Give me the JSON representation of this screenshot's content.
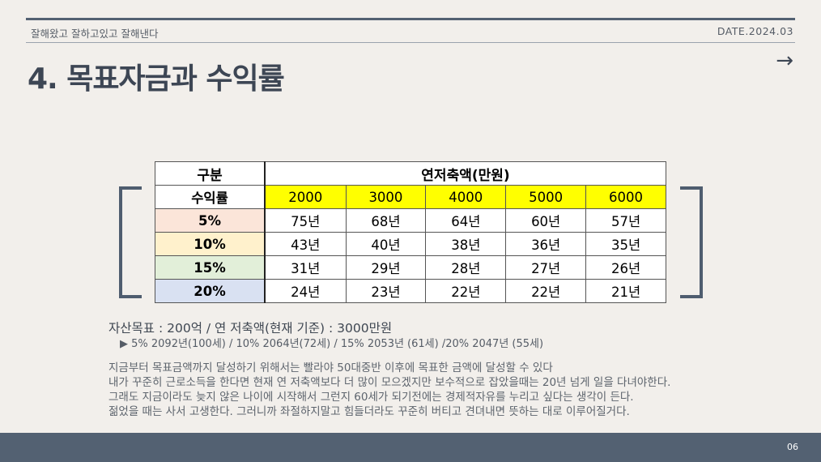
{
  "header": {
    "slogan": "잘해왔고 잘하고있고 잘해낸다",
    "date": "DATE.2024.03",
    "title": "4. 목표자금과 수익률",
    "arrow": "→"
  },
  "table": {
    "corner_label": "구분",
    "group_header": "연저축액(만원)",
    "row_header_label": "수익률",
    "amounts": [
      "2000",
      "3000",
      "4000",
      "5000",
      "6000"
    ],
    "rows": [
      {
        "rate": "5%",
        "cells": [
          "75년",
          "68년",
          "64년",
          "60년",
          "57년"
        ]
      },
      {
        "rate": "10%",
        "cells": [
          "43년",
          "40년",
          "38년",
          "36년",
          "35년"
        ]
      },
      {
        "rate": "15%",
        "cells": [
          "31년",
          "29년",
          "28년",
          "27년",
          "26년"
        ]
      },
      {
        "rate": "20%",
        "cells": [
          "24년",
          "23년",
          "22년",
          "22년",
          "21년"
        ]
      }
    ]
  },
  "summary": "자산목표 : 200억 / 연 저축액(현재 기준) : 3000만원",
  "detail": "▶ 5% 2092년(100세) / 10% 2064년(72세) / 15% 2053년 (61세) /20% 2047년 (55세)",
  "body_lines": [
    "지금부터 목표금액까지 달성하기 위해서는 빨라야 50대중반 이후에 목표한 금액에 달성할 수 있다",
    "내가 꾸준히 근로소득을 한다면 현재 연 저축액보다 더 많이 모으겠지만 보수적으로 잡았을때는 20년 넘게 일을 다녀야한다.",
    "그래도 지금이라도 늦지 않은 나이에 시작해서 그런지 60세가 되기전에는 경제적자유를 누리고 싶다는 생각이 든다.",
    "젊었을 때는 사서 고생한다. 그러니까 좌절하지말고 힘들더라도 꾸준히 버티고 견뎌내면 뜻하는 대로 이루어질거다."
  ],
  "footer": {
    "page_number": "06"
  }
}
